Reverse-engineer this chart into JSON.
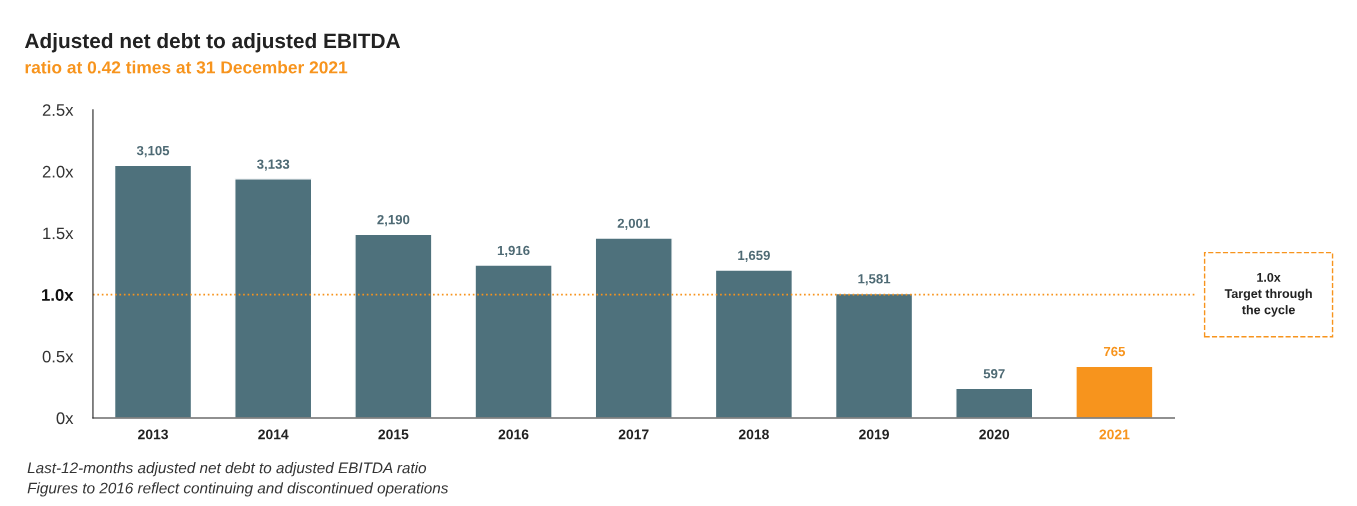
{
  "chart_data": {
    "type": "bar",
    "title": "Adjusted net debt to adjusted EBITDA",
    "subtitle": "ratio at 0.42 times at 31 December 2021",
    "categories": [
      "2013",
      "2014",
      "2015",
      "2016",
      "2017",
      "2018",
      "2019",
      "2020",
      "2021"
    ],
    "values": [
      2.05,
      1.94,
      1.49,
      1.24,
      1.46,
      1.2,
      1.01,
      0.24,
      0.42
    ],
    "colors": [
      "#4e717c",
      "#4e717c",
      "#4e717c",
      "#4e717c",
      "#4e717c",
      "#4e717c",
      "#4e717c",
      "#4e717c",
      "#f7941d"
    ],
    "ylim": [
      0,
      2.5
    ],
    "yticks": [
      {
        "value": 0,
        "label": "0x"
      },
      {
        "value": 0.5,
        "label": "0.5x"
      },
      {
        "value": 1.0,
        "label": "1.0x"
      },
      {
        "value": 1.5,
        "label": "1.5x"
      },
      {
        "value": 2.0,
        "label": "2.0x"
      },
      {
        "value": 2.5,
        "label": "2.5x"
      }
    ],
    "ref_lines": [
      {
        "axis": "y",
        "value": 1.0,
        "label": "1.0x\nTarget through\nthe cycle",
        "color": "#f7941d",
        "line_style": "dotted"
      }
    ],
    "annotations": [
      {
        "text": "3,105",
        "x": "2013",
        "y": 2.05
      },
      {
        "text": "3,133",
        "x": "2014",
        "y": 1.94
      },
      {
        "text": "2,190",
        "x": "2015",
        "y": 1.49
      },
      {
        "text": "1,916",
        "x": "2016",
        "y": 1.24
      },
      {
        "text": "2,001",
        "x": "2017",
        "y": 1.46
      },
      {
        "text": "1,659",
        "x": "2018",
        "y": 1.2
      },
      {
        "text": "1,581",
        "x": "2019",
        "y": 1.01
      },
      {
        "text": "597",
        "x": "2020",
        "y": 0.24
      },
      {
        "text": "765",
        "x": "2021",
        "y": 0.42
      },
      "Last-12-months adjusted net debt to adjusted EBITDA ratio",
      "Figures to 2016 reflect continuing and discontinued operations"
    ],
    "grid": false,
    "legend": false
  }
}
